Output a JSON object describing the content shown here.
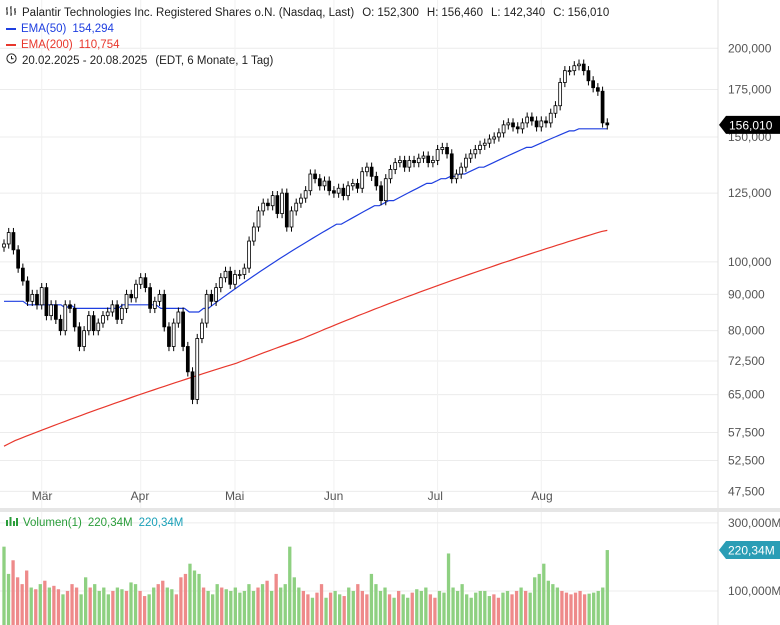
{
  "header": {
    "instrument": "Palantir Technologies Inc. Registered Shares o.N. (Nasdaq, Last)",
    "open_label": "O:",
    "open": "152,300",
    "high_label": "H:",
    "high": "156,460",
    "low_label": "L:",
    "low": "142,340",
    "close_label": "C:",
    "close": "156,010",
    "ema50_label": "EMA(50)",
    "ema50_value": "154,294",
    "ema200_label": "EMA(200)",
    "ema200_value": "110,754",
    "date_range": "20.02.2025 - 20.08.2025",
    "range_info": "(EDT, 6 Monate, 1 Tag)"
  },
  "volume_legend": {
    "label": "Volumen(1)",
    "value": "220,34M",
    "value2": "220,34M"
  },
  "colors": {
    "ema50": "#1f3fe0",
    "ema200": "#e8372c",
    "volume_up": "#8ed081",
    "volume_down": "#ee8a8a",
    "price_badge": "#000000",
    "volume_badge": "#2a9db5"
  },
  "chart_data": {
    "type": "candlestick",
    "price_scale": "log",
    "y_ticks": [
      "200,000",
      "175,000",
      "150,000",
      "125,000",
      "100,000",
      "90,000",
      "80,000",
      "72,500",
      "65,000",
      "57,500",
      "52,500",
      "47,500"
    ],
    "y_tick_values": [
      200,
      175,
      150,
      125,
      100,
      90,
      80,
      72.5,
      65,
      57.5,
      52.5,
      47.5
    ],
    "x_ticks": [
      "Mär",
      "Apr",
      "Mai",
      "Jun",
      "Jul",
      "Aug"
    ],
    "last_price_label": "156,010",
    "last_price": 156.01,
    "close_series": [
      106,
      110,
      104,
      98,
      94,
      88,
      90,
      87,
      92,
      84,
      87,
      83,
      80,
      87,
      86,
      81,
      76,
      80,
      84,
      80,
      82,
      84,
      85,
      87,
      83,
      86,
      90,
      89,
      93,
      95,
      92,
      86,
      88,
      90,
      81,
      76,
      82,
      85,
      76,
      70,
      64,
      78,
      82,
      90,
      88,
      92,
      95,
      97,
      93,
      96,
      96,
      98,
      107,
      112,
      118,
      121,
      120,
      124,
      117,
      125,
      112,
      118,
      121,
      123,
      126,
      133,
      131,
      128,
      130,
      126,
      125,
      127,
      124,
      128,
      129,
      127,
      134,
      136,
      132,
      128,
      122,
      131,
      135,
      138,
      139,
      136,
      139,
      138,
      140,
      141,
      138,
      139,
      144,
      145,
      142,
      131,
      133,
      136,
      140,
      142,
      144,
      146,
      147,
      149,
      150,
      152,
      156,
      157,
      155,
      154,
      157,
      160,
      158,
      155,
      158,
      157,
      162,
      166,
      179,
      186,
      186,
      189,
      190,
      186,
      180,
      176,
      174,
      157,
      156
    ],
    "ema50_series": [
      88,
      88,
      88,
      88,
      88,
      87,
      87,
      87,
      87,
      87,
      87,
      87,
      87,
      86,
      87,
      86,
      86,
      86,
      86,
      86,
      86,
      86,
      86,
      86,
      86,
      87,
      87,
      87,
      87,
      87,
      87,
      87,
      87,
      86,
      86,
      86,
      86,
      86,
      86,
      85,
      85,
      85,
      86,
      86,
      87,
      88,
      89,
      90,
      91,
      92,
      93,
      94,
      95,
      96,
      97,
      98,
      99,
      100,
      101,
      102,
      103,
      104,
      105,
      106,
      107,
      108,
      109,
      110,
      111,
      112,
      113,
      113,
      114,
      115,
      116,
      117,
      118,
      119,
      120,
      120,
      121,
      122,
      122,
      123,
      124,
      125,
      126,
      127,
      128,
      129,
      129,
      130,
      131,
      131,
      132,
      132,
      133,
      133,
      134,
      135,
      136,
      136,
      137,
      138,
      139,
      140,
      141,
      142,
      143,
      144,
      145,
      145,
      146,
      147,
      148,
      149,
      150,
      151,
      152,
      153,
      153,
      154,
      154,
      154,
      154,
      154,
      154,
      154
    ],
    "ema200_series": [
      55,
      55.5,
      56,
      56.4,
      56.8,
      57.2,
      57.6,
      58,
      58.4,
      58.8,
      59.2,
      59.6,
      60,
      60.4,
      60.8,
      61.2,
      61.6,
      62,
      62.4,
      62.8,
      63.2,
      63.6,
      64,
      64.4,
      64.8,
      65.2,
      65.6,
      66,
      66.4,
      66.8,
      67.2,
      67.6,
      68,
      68.4,
      68.8,
      69.2,
      69.6,
      70,
      70.4,
      70.8,
      71.2,
      71.6,
      72,
      72.5,
      73,
      73.5,
      74,
      74.5,
      75,
      75.5,
      76,
      76.5,
      77,
      77.5,
      78,
      78.6,
      79.2,
      79.8,
      80.4,
      81,
      81.6,
      82.2,
      82.8,
      83.4,
      84,
      84.6,
      85.2,
      85.8,
      86.4,
      87,
      87.6,
      88.2,
      88.8,
      89.4,
      90,
      90.6,
      91.2,
      91.8,
      92.4,
      93,
      93.6,
      94.2,
      94.8,
      95.4,
      96,
      96.6,
      97.2,
      97.8,
      98.4,
      99,
      99.6,
      100.2,
      100.8,
      101.4,
      102,
      102.6,
      103.2,
      103.8,
      104.4,
      105,
      105.6,
      106.2,
      106.8,
      107.4,
      108,
      108.6,
      109.2,
      109.8,
      110.4,
      110.754
    ],
    "volume_label": "220,34M",
    "volume_ticks": [
      "300,000M",
      "100,000M"
    ],
    "volume_tick_values": [
      300,
      100
    ],
    "volume_series": [
      230,
      150,
      190,
      140,
      120,
      160,
      110,
      105,
      120,
      130,
      110,
      115,
      105,
      90,
      100,
      120,
      110,
      90,
      140,
      110,
      120,
      100,
      110,
      90,
      100,
      110,
      105,
      100,
      125,
      120,
      100,
      85,
      90,
      110,
      120,
      130,
      110,
      105,
      90,
      140,
      150,
      180,
      160,
      150,
      110,
      100,
      90,
      120,
      110,
      105,
      100,
      110,
      95,
      100,
      120,
      100,
      110,
      120,
      130,
      100,
      150,
      110,
      120,
      230,
      140,
      110,
      100,
      90,
      80,
      95,
      120,
      80,
      95,
      100,
      90,
      85,
      110,
      100,
      120,
      100,
      90,
      150,
      120,
      100,
      110,
      90,
      80,
      100,
      90,
      80,
      95,
      105,
      100,
      110,
      90,
      80,
      100,
      95,
      210,
      110,
      100,
      120,
      90,
      80,
      95,
      100,
      100,
      85,
      90,
      80,
      95,
      100,
      90,
      100,
      110,
      100,
      95,
      140,
      150,
      180,
      130,
      120,
      110,
      100,
      95,
      90,
      95,
      100,
      90,
      92,
      95,
      100,
      110,
      220
    ]
  }
}
